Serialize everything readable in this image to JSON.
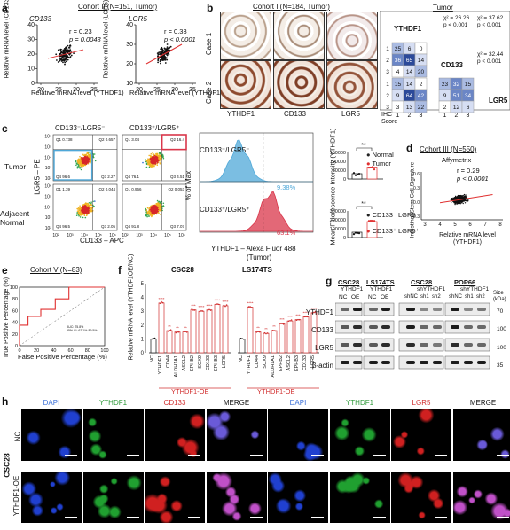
{
  "panels": {
    "a": {
      "letter": "a",
      "title": "Cohort II (N=151, Tumor)",
      "left": {
        "gene": "CD133",
        "ylabel": "Relative mRNA level (CD133)",
        "xlabel": "Relative mRNA level (YTHDF1)",
        "r": "r = 0.23",
        "p": "p = 0.0043",
        "xticks": [
          "20",
          "25",
          "30",
          "35"
        ],
        "yticks": [
          "0",
          "10",
          "20",
          "30",
          "40"
        ]
      },
      "right": {
        "gene": "LGR5",
        "ylabel": "Relative mRNA level (LGR5)",
        "xlabel": "Relative mRNA level (YTHDF1)",
        "r": "r = 0.33",
        "p": "p < 0.0001",
        "xticks": [
          "20",
          "25",
          "30",
          "35"
        ],
        "yticks": [
          "10",
          "20",
          "30",
          "40"
        ]
      }
    },
    "b": {
      "letter": "b",
      "title": "Cohort I (N=184, Tumor)",
      "rows": [
        "Case 1",
        "Case 2"
      ],
      "cols": [
        "YTHDF1",
        "CD133",
        "LGR5"
      ],
      "table_title": "Tumor",
      "stats": {
        "ythdf1_cd133": [
          "χ² = 26.26",
          "p < 0.001"
        ],
        "ythdf1_lgr5": [
          "χ² = 37.62",
          "p < 0.001"
        ],
        "cd133_lgr5": [
          "χ² = 32.44",
          "p < 0.001"
        ]
      },
      "row_labels": [
        "YTHDF1",
        "CD133",
        "LGR5"
      ],
      "ihc_label": "IHC Score",
      "score_ticks": [
        "1",
        "2",
        "3"
      ],
      "matrix_top": [
        [
          "25",
          "6",
          "0"
        ],
        [
          "36",
          "65",
          "14"
        ],
        [
          "4",
          "14",
          "20"
        ]
      ],
      "matrix_bl": [
        [
          "15",
          "14",
          "2"
        ],
        [
          "9",
          "64",
          "42"
        ],
        [
          "3",
          "13",
          "22"
        ]
      ],
      "matrix_br": [
        [
          "23",
          "32",
          "15"
        ],
        [
          "9",
          "51",
          "34"
        ],
        [
          "2",
          "12",
          "6"
        ]
      ]
    },
    "c": {
      "letter": "c",
      "gate_headers": [
        "CD133⁻/LGR5⁻",
        "CD133⁺/LGR5⁺"
      ],
      "rows": [
        "Tumor",
        "Adjacent Normal"
      ],
      "ylabel": "LGR5 – PE",
      "xlabel": "CD133 – APC",
      "decades": [
        "10²",
        "10³",
        "10⁴",
        "10⁵",
        "10⁶"
      ],
      "quadrants_tumor_a": [
        "Q1 0.738",
        "Q2 0.657",
        "Q4 96.6",
        "Q3 2.27"
      ],
      "quadrants_tumor_b": [
        "Q1 3.04",
        "Q2 16.4",
        "Q4 76.1",
        "Q3 4.51"
      ],
      "quadrants_normal_a": [
        "Q1 1.39",
        "Q2 0.044",
        "Q4 96.5",
        "Q3 2.05"
      ],
      "quadrants_normal_b": [
        "Q1 0.966",
        "Q2 0.053",
        "Q4 91.8",
        "Q3 7.07"
      ],
      "hist_label1": "CD133⁻/LGR5⁻",
      "hist_pct1": "9.38%",
      "hist_label2": "CD133⁺/LGR5⁺",
      "hist_pct2": "63.1%",
      "hist_ylabel": "% of Max",
      "hist_xlabel": "YTHDF1 – Alexa Fluor 488",
      "hist_xsub": "(Tumor)",
      "mfi_ylabel": "Mean Fluorescence Intensity (YTHDF1)",
      "mfi_yticks_top": [
        "0",
        "50000",
        "100000",
        "150000"
      ],
      "mfi_yticks_bot": [
        "0",
        "100000",
        "200000",
        "300000"
      ],
      "sig": "**",
      "legend_top": [
        "Normal",
        "Tumor"
      ],
      "legend_bot": [
        "CD133⁻ LGR5⁻",
        "CD133⁺ LGR5⁺"
      ],
      "colors": {
        "normal": "#222222",
        "tumor": "#e03030",
        "blue": "#4fa8d8",
        "red": "#d9364a"
      }
    },
    "d": {
      "letter": "d",
      "title": "Cohort III (N=550)",
      "subtitle": "Affymetrix",
      "r": "r = 0.29",
      "p": "p < 0.0001",
      "ylabel": "Intestinal Stem Cell Signature",
      "xlabel": "Relative mRNA level (YTHDF1)",
      "xticks": [
        "3",
        "4",
        "5",
        "6",
        "7",
        "8"
      ],
      "yticks": [
        "-0.3",
        "0.0",
        "0.3",
        "0.6"
      ]
    },
    "e": {
      "letter": "e",
      "title": "Cohort V (N=83)",
      "ylabel": "True Positive Percentage (%)",
      "xlabel": "False Positive Percentage (%)",
      "ticks": [
        "0",
        "20",
        "40",
        "60",
        "80",
        "100"
      ],
      "auc": "AUC: 75.8%",
      "ci": "95% CI: 62.1%-89.5%"
    },
    "f": {
      "letter": "f",
      "ylabel": "Relative mRNA level (YTHDF1OE/NC)",
      "yticks": [
        "0",
        "1",
        "2",
        "3",
        "4",
        "5"
      ],
      "groups": [
        {
          "title": "CSC28",
          "categories": [
            "NC",
            "YTHDF1",
            "CD44",
            "ALDH1A1",
            "ASCL2",
            "EPHB2",
            "SOX9",
            "CD133",
            "EPHB3",
            "LGR5"
          ],
          "values": [
            1.0,
            3.6,
            1.6,
            1.5,
            1.5,
            3.1,
            3.0,
            3.1,
            3.5,
            3.4
          ],
          "sig": [
            "",
            "****",
            "**",
            "**",
            "**",
            "***",
            "****",
            "****",
            "****",
            "****"
          ],
          "bracket": "YTHDF1-OE"
        },
        {
          "title": "LS174TS",
          "categories": [
            "NC",
            "YTHDF1",
            "CD44",
            "SOX9",
            "ALDH1A1",
            "EPHB2",
            "ASCL2",
            "EPHB3",
            "CD133",
            "LGR5"
          ],
          "values": [
            1.0,
            3.3,
            1.5,
            1.4,
            1.6,
            2.1,
            2.3,
            2.4,
            2.6,
            2.9
          ],
          "sig": [
            "",
            "****",
            "**",
            "**",
            "**",
            "***",
            "***",
            "***",
            "****",
            "****"
          ],
          "bracket": "YTHDF1-OE"
        }
      ]
    },
    "g": {
      "letter": "g",
      "groups": [
        {
          "title": "CSC28",
          "sub": "YTHDF1",
          "lanes": [
            "NC",
            "OE"
          ]
        },
        {
          "title": "LS174TS",
          "sub": "YTHDF1",
          "lanes": [
            "NC",
            "OE"
          ]
        },
        {
          "title": "CSC28",
          "sub": "shYTHDF1",
          "lanes": [
            "shNC",
            "sh1",
            "sh2"
          ]
        },
        {
          "title": "POP66",
          "sub": "shYTHDF1",
          "lanes": [
            "shNC",
            "sh1",
            "sh2"
          ]
        }
      ],
      "bands": [
        "YTHDF1",
        "CD133",
        "LGR5",
        "β-actin"
      ],
      "size_label": "Size (kDa)",
      "sizes": [
        "70",
        "100",
        "100",
        "35"
      ]
    },
    "h": {
      "letter": "h",
      "cell_line": "CSC28",
      "rows": [
        "NC",
        "YTHDF1-OE"
      ],
      "headers_left": [
        "DAPI",
        "YTHDF1",
        "CD133",
        "MERGE"
      ],
      "headers_right": [
        "DAPI",
        "YTHDF1",
        "LGR5",
        "MERGE"
      ],
      "header_colors": [
        "#3a6fd8",
        "#2f9a3a",
        "#d23030",
        "#111111"
      ]
    }
  }
}
